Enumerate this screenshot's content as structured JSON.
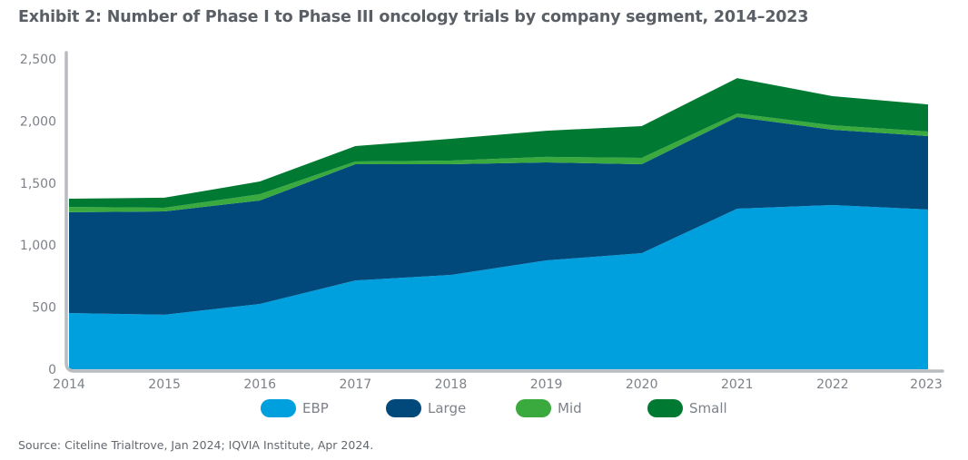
{
  "title": "Exhibit 2: Number of Phase I to Phase III oncology trials by company segment, 2014–2023",
  "source": "Source: Citeline Trialtrove, Jan 2024; IQVIA Institute, Apr 2024.",
  "chart_data": {
    "type": "area",
    "stacked": true,
    "title": "Exhibit 2: Number of Phase I to Phase III oncology trials by company segment, 2014–2023",
    "xlabel": "",
    "ylabel": "",
    "x": [
      "2014",
      "2015",
      "2016",
      "2017",
      "2018",
      "2019",
      "2020",
      "2021",
      "2022",
      "2023"
    ],
    "ylim": [
      0,
      2500
    ],
    "yticks": [
      0,
      500,
      1000,
      1500,
      2000,
      2500
    ],
    "ytick_labels": [
      "0",
      "500",
      "1,000",
      "1,500",
      "2,000",
      "2,500"
    ],
    "grid": false,
    "legend_position": "bottom",
    "series": [
      {
        "name": "EBP",
        "color": "#00a0df",
        "values": [
          453,
          439,
          526,
          716,
          760,
          877,
          936,
          1294,
          1323,
          1287
        ]
      },
      {
        "name": "Large",
        "color": "#00497a",
        "values": [
          812,
          833,
          834,
          936,
          892,
          790,
          716,
          738,
          607,
          592
        ]
      },
      {
        "name": "Mid",
        "color": "#3aaa3f",
        "values": [
          43,
          29,
          51,
          22,
          29,
          44,
          51,
          29,
          36,
          36
        ]
      },
      {
        "name": "Small",
        "color": "#007a33",
        "values": [
          66,
          81,
          102,
          124,
          176,
          211,
          256,
          285,
          234,
          219
        ]
      }
    ]
  }
}
